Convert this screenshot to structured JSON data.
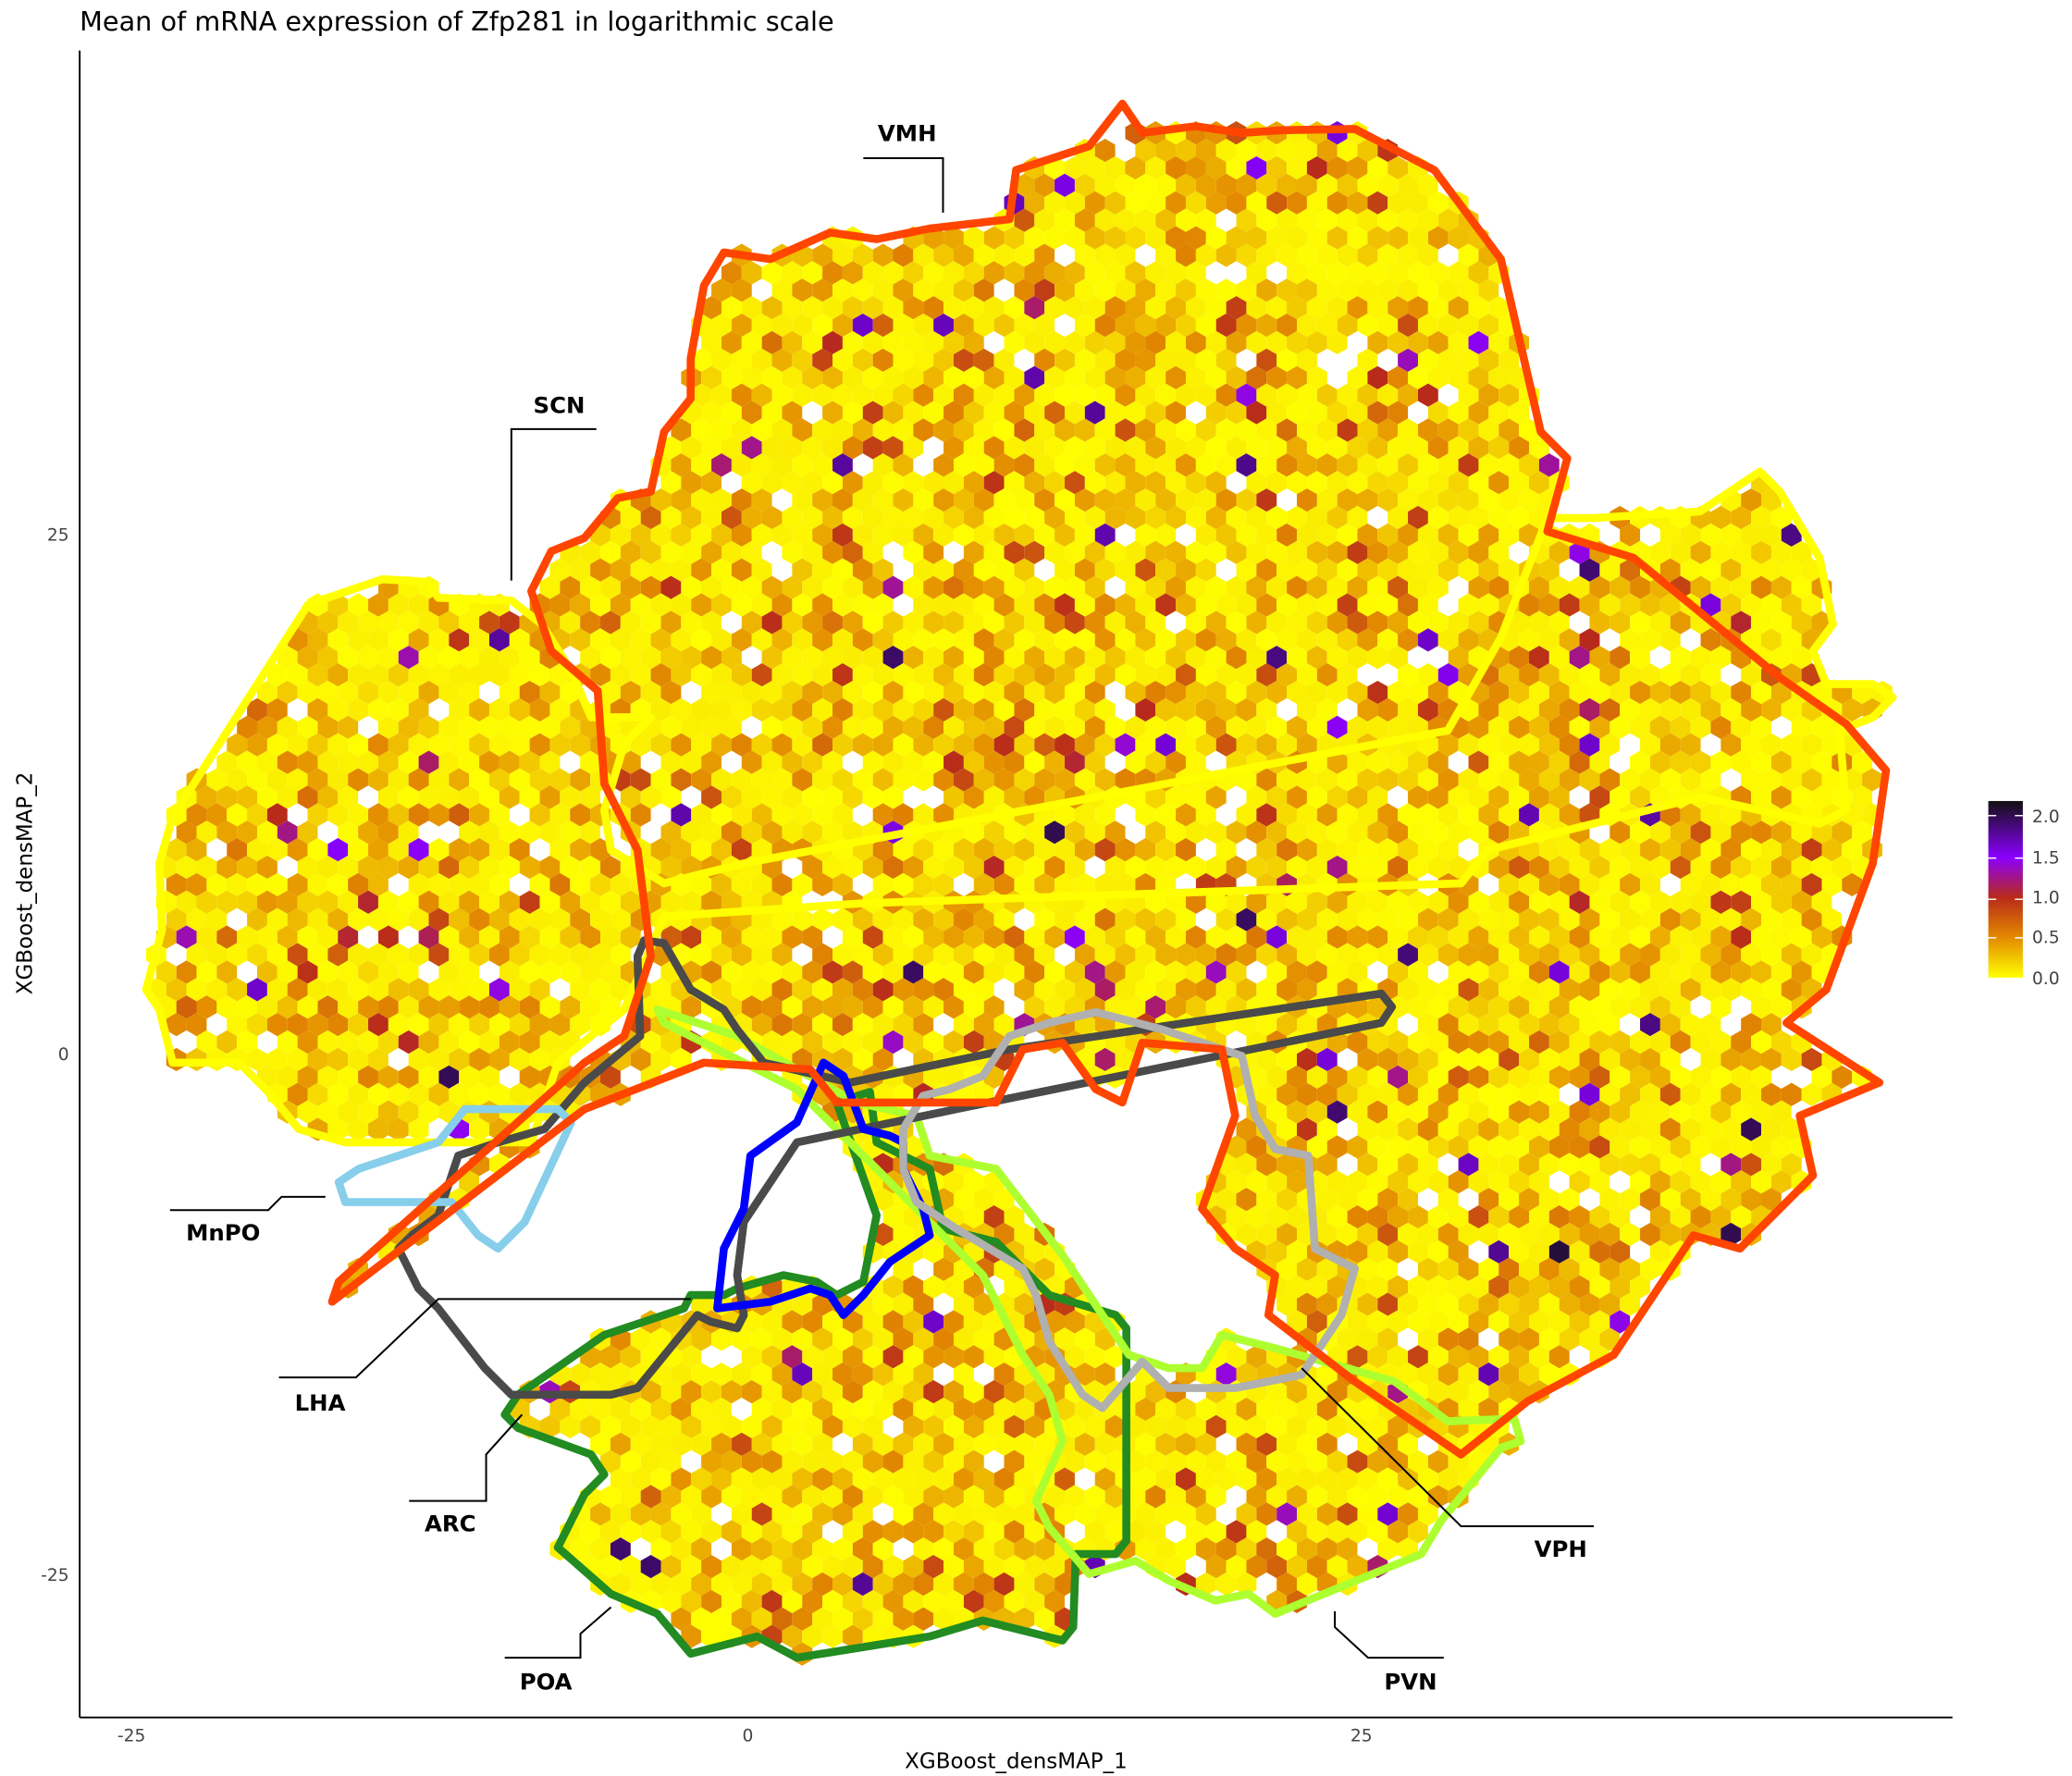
{
  "chart_data": {
    "type": "heatmap",
    "subtype": "hexbin",
    "title": "Mean of mRNA expression of Zfp281 in logarithmic scale",
    "xlabel": "XGBoost_densMAP_1",
    "ylabel": "XGBoost_densMAP_2",
    "x_ticks": [
      "-25",
      "0",
      "25"
    ],
    "y_ticks": [
      "25",
      "0",
      "-25"
    ],
    "xlim": [
      -27,
      49
    ],
    "ylim": [
      -32,
      48
    ],
    "grid": false,
    "legend": {
      "placement": "right",
      "type": "colorbar",
      "range": [
        0,
        2.2
      ],
      "ticks": [
        "2.0",
        "1.5",
        "1.0",
        "0.5",
        "0.0"
      ],
      "stops": [
        {
          "value": 0.0,
          "color": "#ffff00"
        },
        {
          "value": 0.5,
          "color": "#e38a00"
        },
        {
          "value": 1.0,
          "color": "#b82a1a"
        },
        {
          "value": 1.5,
          "color": "#8a00ff"
        },
        {
          "value": 2.2,
          "color": "#111111"
        }
      ]
    },
    "regions": [
      {
        "name": "VMH",
        "color": "#ff4500"
      },
      {
        "name": "SCN",
        "color": "#ffff00"
      },
      {
        "name": "MnPO",
        "color": "#87ceeb"
      },
      {
        "name": "LHA",
        "color": "#4a4a4a"
      },
      {
        "name": "ARC",
        "color": "#0000ff"
      },
      {
        "name": "POA",
        "color": "#228b22"
      },
      {
        "name": "PVN",
        "color": "#adff2f"
      },
      {
        "name": "VPH",
        "color": "#b0b0b0"
      }
    ]
  }
}
